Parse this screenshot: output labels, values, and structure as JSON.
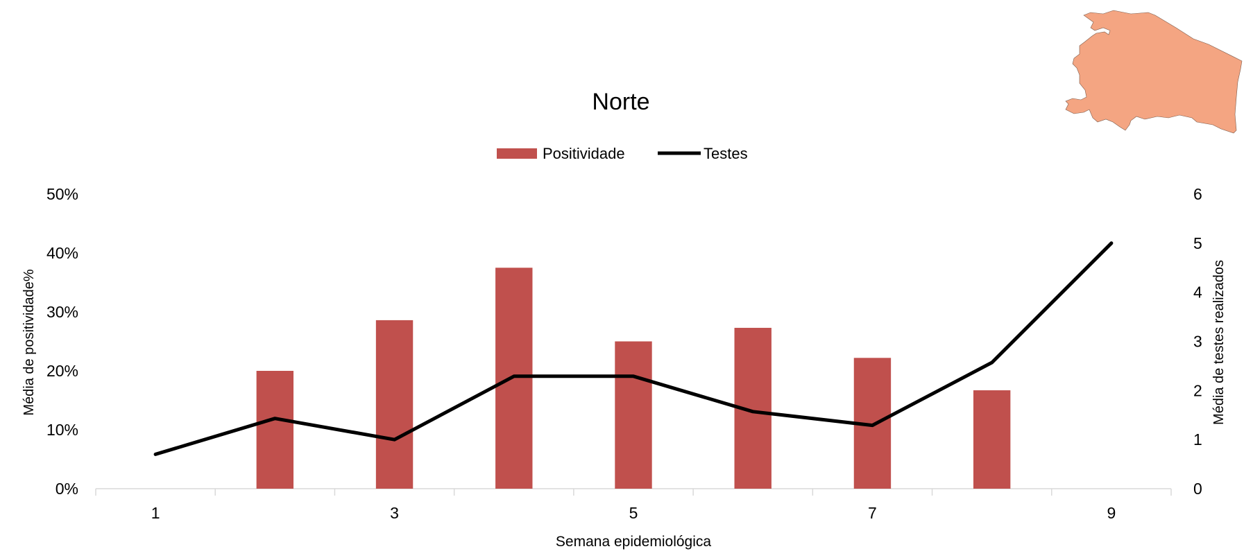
{
  "chart_data": {
    "type": "bar",
    "title": "Norte",
    "xlabel": "Semana epidemiológica",
    "ylabel_left": "Média de positividade%",
    "ylabel_right": "Média de testes realizados",
    "x": [
      1,
      2,
      3,
      4,
      5,
      6,
      7,
      8,
      9
    ],
    "x_tick_labels": [
      "1",
      "",
      "3",
      "",
      "5",
      "",
      "7",
      "",
      "9"
    ],
    "left_axis": {
      "min": 0,
      "max": 0.5,
      "ticks": [
        0,
        0.1,
        0.2,
        0.3,
        0.4,
        0.5
      ],
      "tick_labels": [
        "0%",
        "10%",
        "20%",
        "30%",
        "40%",
        "50%"
      ]
    },
    "right_axis": {
      "min": 0,
      "max": 6,
      "ticks": [
        0,
        1,
        2,
        3,
        4,
        5,
        6
      ],
      "tick_labels": [
        "0",
        "1",
        "2",
        "3",
        "4",
        "5",
        "6"
      ]
    },
    "series": [
      {
        "name": "Positividade",
        "type": "bar",
        "axis": "left",
        "color": "#c0504d",
        "values": [
          0,
          0.2,
          0.286,
          0.375,
          0.25,
          0.273,
          0.222,
          0.167,
          0
        ]
      },
      {
        "name": "Testes",
        "type": "line",
        "axis": "right",
        "color": "#000000",
        "values": [
          0.7,
          1.43,
          1.0,
          2.29,
          2.29,
          1.57,
          1.29,
          2.57,
          5.0
        ]
      }
    ],
    "legend_position": "top-center",
    "grid": false,
    "map_inset": {
      "region": "Norte",
      "color": "#f4a582",
      "position": "top-right"
    }
  }
}
